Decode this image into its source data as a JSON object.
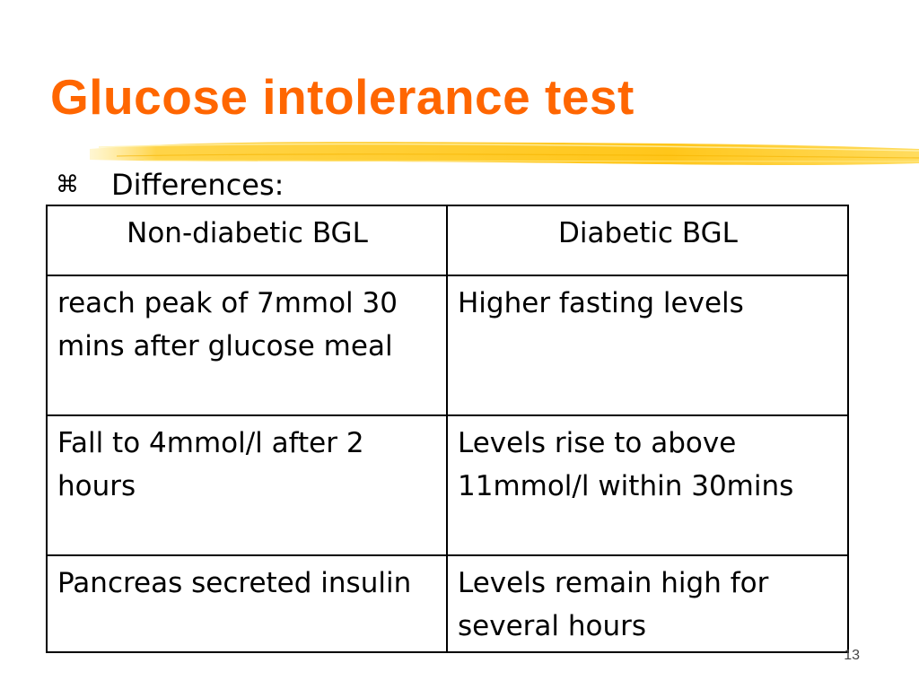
{
  "slide": {
    "title": "Glucose intolerance test",
    "bullet": {
      "icon": "command-symbol-icon",
      "glyph": "⌘",
      "text": "Differences:"
    },
    "table": {
      "headers": [
        "Non-diabetic BGL",
        "Diabetic BGL"
      ],
      "rows": [
        [
          "reach peak of 7mmol 30 mins after glucose meal",
          "Higher fasting levels"
        ],
        [
          "Fall to 4mmol/l after 2 hours",
          "Levels rise to above 11mmol/l within 30mins"
        ],
        [
          "Pancreas secreted insulin",
          "Levels remain high for several hours"
        ]
      ]
    },
    "page_number": "13",
    "colors": {
      "title": "#ff6600",
      "brush_stroke": "#ffcc33"
    }
  }
}
